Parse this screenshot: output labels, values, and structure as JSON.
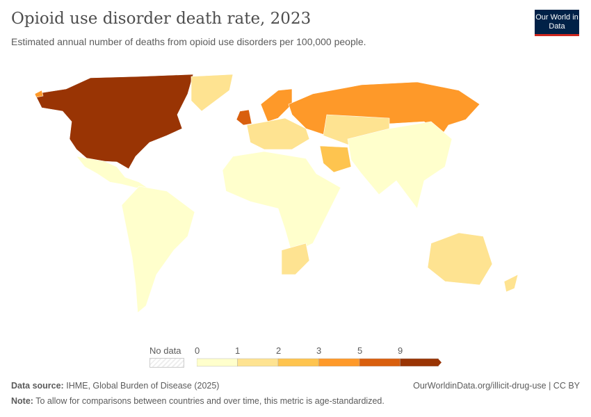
{
  "header": {
    "title": "Opioid use disorder death rate, 2023",
    "subtitle": "Estimated annual number of deaths from opioid use disorders per 100,000 people.",
    "logo": "Our World in Data"
  },
  "legend": {
    "no_data_label": "No data",
    "ticks": [
      "0",
      "1",
      "2",
      "3",
      "5",
      "9"
    ],
    "colors": [
      "#ffffcc",
      "#fee391",
      "#fec44f",
      "#fe9929",
      "#d95f0e",
      "#993404"
    ]
  },
  "map": {
    "regions": [
      {
        "name": "Canada and United States",
        "bin": 5
      },
      {
        "name": "Greenland",
        "bin": 1
      },
      {
        "name": "Mexico and Central America",
        "bin": 0
      },
      {
        "name": "South America",
        "bin": 0
      },
      {
        "name": "United Kingdom",
        "bin": 4
      },
      {
        "name": "Scandinavia",
        "bin": 3
      },
      {
        "name": "Western Europe",
        "bin": 1
      },
      {
        "name": "Russia",
        "bin": 3
      },
      {
        "name": "Africa",
        "bin": 0
      },
      {
        "name": "Southern Africa",
        "bin": 1
      },
      {
        "name": "Iran",
        "bin": 2
      },
      {
        "name": "Central Asia",
        "bin": 1
      },
      {
        "name": "Asia",
        "bin": 0
      },
      {
        "name": "Australia",
        "bin": 1
      },
      {
        "name": "New Zealand",
        "bin": 1
      },
      {
        "name": "Iceland",
        "bin": 3
      }
    ]
  },
  "footer": {
    "source_label": "Data source:",
    "source": "IHME, Global Burden of Disease (2025)",
    "url": "OurWorldinData.org/illicit-drug-use | CC BY",
    "note_label": "Note:",
    "note": "To allow for comparisons between countries and over time, this metric is age-standardized."
  }
}
